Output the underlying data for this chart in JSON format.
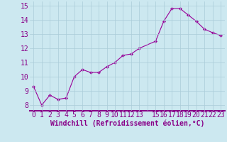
{
  "x_full": [
    0,
    1,
    2,
    3,
    4,
    5,
    6,
    7,
    8,
    9,
    10,
    11,
    12,
    13,
    15,
    16,
    17,
    18,
    19,
    20,
    21,
    22,
    23
  ],
  "y_full": [
    9.3,
    8.0,
    8.7,
    8.4,
    8.5,
    10.0,
    10.5,
    10.3,
    10.3,
    10.7,
    11.0,
    11.5,
    11.6,
    12.0,
    12.5,
    13.9,
    14.8,
    14.8,
    14.35,
    13.9,
    13.35,
    13.1,
    12.9
  ],
  "line_color": "#990099",
  "marker_color": "#990099",
  "bg_color": "#cce8f0",
  "grid_color": "#aaccd8",
  "xlabel": "Windchill (Refroidissement éolien,°C)",
  "ylabel_ticks": [
    8,
    9,
    10,
    11,
    12,
    13,
    14,
    15
  ],
  "xtick_labels": [
    "0",
    "1",
    "2",
    "3",
    "4",
    "5",
    "6",
    "7",
    "8",
    "9",
    "10",
    "11",
    "12",
    "13",
    "",
    "15",
    "16",
    "17",
    "18",
    "19",
    "20",
    "21",
    "22",
    "23"
  ],
  "xtick_positions": [
    0,
    1,
    2,
    3,
    4,
    5,
    6,
    7,
    8,
    9,
    10,
    11,
    12,
    13,
    14,
    15,
    16,
    17,
    18,
    19,
    20,
    21,
    22,
    23
  ],
  "xlim": [
    -0.5,
    23.5
  ],
  "ylim": [
    7.6,
    15.3
  ],
  "xlabel_fontsize": 7,
  "tick_fontsize": 7,
  "axis_color": "#880088",
  "title_bar_color": "#880088"
}
